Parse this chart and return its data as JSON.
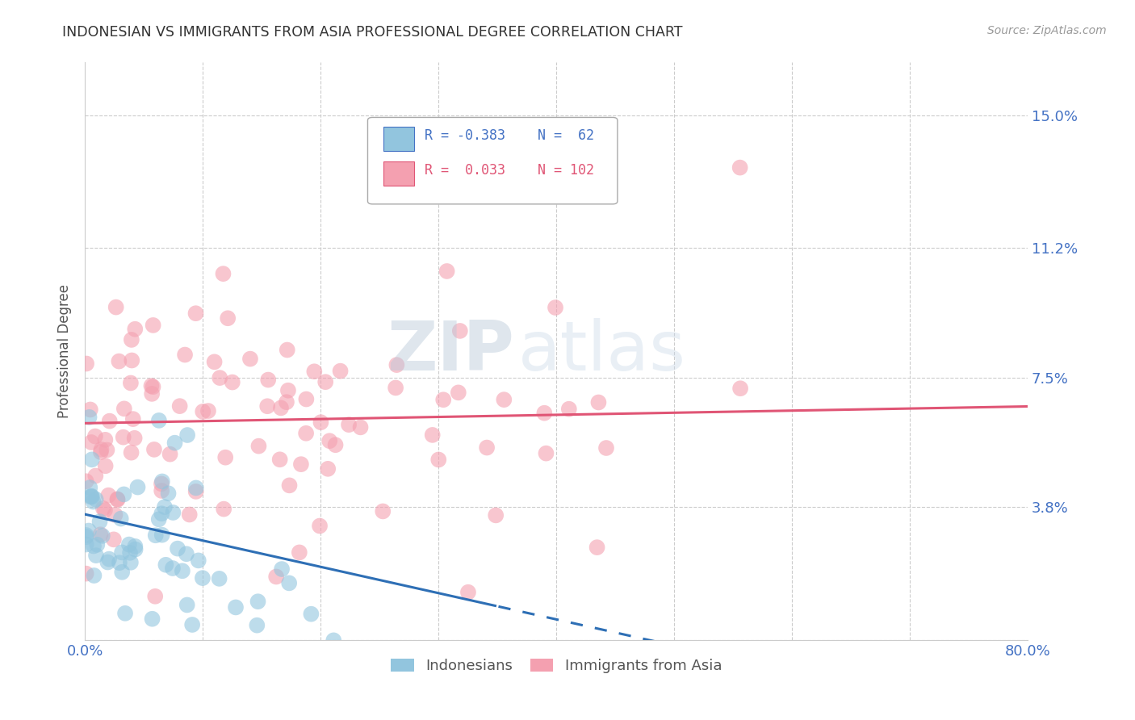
{
  "title": "INDONESIAN VS IMMIGRANTS FROM ASIA PROFESSIONAL DEGREE CORRELATION CHART",
  "source": "Source: ZipAtlas.com",
  "ylabel": "Professional Degree",
  "xlim": [
    0.0,
    0.8
  ],
  "ylim": [
    0.0,
    0.165
  ],
  "ytick_values": [
    0.0,
    0.038,
    0.075,
    0.112,
    0.15
  ],
  "ytick_labels": [
    "",
    "3.8%",
    "7.5%",
    "11.2%",
    "15.0%"
  ],
  "color_indonesian": "#92C5DE",
  "color_immigrant": "#F4A0B0",
  "color_trend_indonesian": "#2E6FB5",
  "color_trend_immigrant": "#E05575",
  "watermark_zip": "ZIP",
  "watermark_atlas": "atlas",
  "seed": 77
}
